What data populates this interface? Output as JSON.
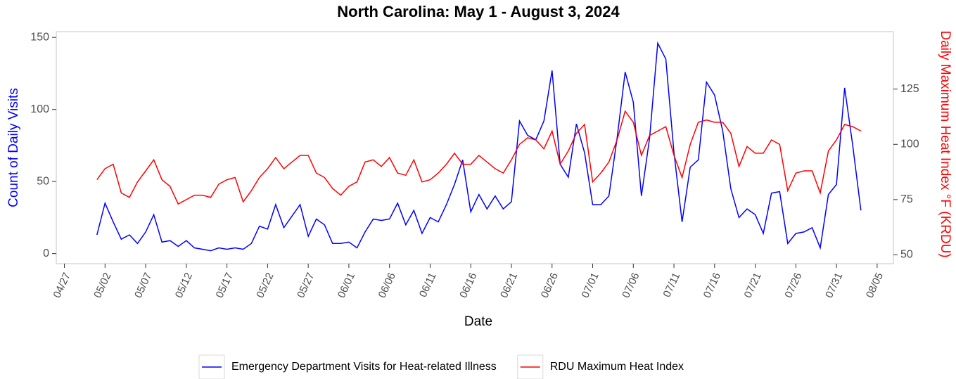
{
  "chart_data": {
    "type": "line",
    "title": "North Carolina: May 1 - August 3, 2024",
    "x_label": "Date",
    "y_label": "Count of Daily Visits",
    "y2_label": "Daily Maximum Heat Index °F (KRDU)",
    "x": [
      "05/01",
      "05/02",
      "05/03",
      "05/04",
      "05/05",
      "05/06",
      "05/07",
      "05/08",
      "05/09",
      "05/10",
      "05/11",
      "05/12",
      "05/13",
      "05/14",
      "05/15",
      "05/16",
      "05/17",
      "05/18",
      "05/19",
      "05/20",
      "05/21",
      "05/22",
      "05/23",
      "05/24",
      "05/25",
      "05/26",
      "05/27",
      "05/28",
      "05/29",
      "05/30",
      "05/31",
      "06/01",
      "06/02",
      "06/03",
      "06/04",
      "06/05",
      "06/06",
      "06/07",
      "06/08",
      "06/09",
      "06/10",
      "06/11",
      "06/12",
      "06/13",
      "06/14",
      "06/15",
      "06/16",
      "06/17",
      "06/18",
      "06/19",
      "06/20",
      "06/21",
      "06/22",
      "06/23",
      "06/24",
      "06/25",
      "06/26",
      "06/27",
      "06/28",
      "06/29",
      "06/30",
      "07/01",
      "07/02",
      "07/03",
      "07/04",
      "07/05",
      "07/06",
      "07/07",
      "07/08",
      "07/09",
      "07/10",
      "07/11",
      "07/12",
      "07/13",
      "07/14",
      "07/15",
      "07/16",
      "07/17",
      "07/18",
      "07/19",
      "07/20",
      "07/21",
      "07/22",
      "07/23",
      "07/24",
      "07/25",
      "07/26",
      "07/27",
      "07/28",
      "07/29",
      "07/30",
      "07/31",
      "08/01",
      "08/02",
      "08/03"
    ],
    "series": [
      {
        "name": "Emergency Department Visits for Heat-related Illness",
        "color": "#0000ff",
        "axis": "y",
        "values": [
          13,
          35,
          22,
          10,
          13,
          7,
          15,
          27,
          8,
          9,
          5,
          9,
          4,
          3,
          2,
          4,
          3,
          4,
          3,
          7,
          19,
          17,
          34,
          18,
          26,
          34,
          12,
          24,
          20,
          7,
          7,
          8,
          4,
          15,
          24,
          23,
          24,
          35,
          20,
          30,
          14,
          25,
          22,
          34,
          48,
          65,
          29,
          41,
          31,
          40,
          31,
          36,
          92,
          82,
          79,
          92,
          127,
          62,
          53,
          90,
          70,
          34,
          34,
          40,
          80,
          126,
          105,
          40,
          80,
          146,
          135,
          70,
          22,
          60,
          65,
          119,
          110,
          85,
          45,
          25,
          31,
          27,
          14,
          42,
          43,
          7,
          14,
          15,
          18,
          4,
          41,
          48,
          115,
          75,
          30
        ]
      },
      {
        "name": "RDU Maximum Heat Index",
        "color": "#ff0000",
        "axis": "y2",
        "values": [
          84,
          89,
          91,
          78,
          76,
          83,
          88,
          93,
          84,
          81,
          73,
          75,
          77,
          77,
          76,
          82,
          84,
          85,
          74,
          79,
          85,
          89,
          94,
          89,
          92,
          95,
          95,
          87,
          85,
          80,
          77,
          81,
          83,
          92,
          93,
          90,
          94,
          87,
          86,
          93,
          83,
          84,
          87,
          91,
          96,
          91,
          91,
          95,
          92,
          89,
          87,
          93,
          100,
          103,
          102,
          98,
          106,
          91,
          97,
          105,
          109,
          83,
          87,
          92,
          102,
          115,
          110,
          95,
          104,
          106,
          108,
          95,
          85,
          100,
          110,
          111,
          110,
          110,
          105,
          90,
          99,
          96,
          96,
          102,
          100,
          79,
          87,
          88,
          88,
          78,
          97,
          102,
          109,
          108,
          106
        ]
      }
    ],
    "xlim": [
      "04/26",
      "08/07"
    ],
    "xticks": [
      "04/27",
      "05/02",
      "05/07",
      "05/12",
      "05/17",
      "05/22",
      "05/27",
      "06/01",
      "06/06",
      "06/11",
      "06/16",
      "06/21",
      "06/26",
      "07/01",
      "07/06",
      "07/11",
      "07/16",
      "07/21",
      "07/26",
      "07/31",
      "08/05"
    ],
    "ylim": [
      -7,
      154
    ],
    "yticks": [
      0,
      50,
      100,
      150
    ],
    "y2lim": [
      46,
      151
    ],
    "y2ticks": [
      50,
      75,
      100,
      125
    ],
    "legend": "bottom"
  }
}
